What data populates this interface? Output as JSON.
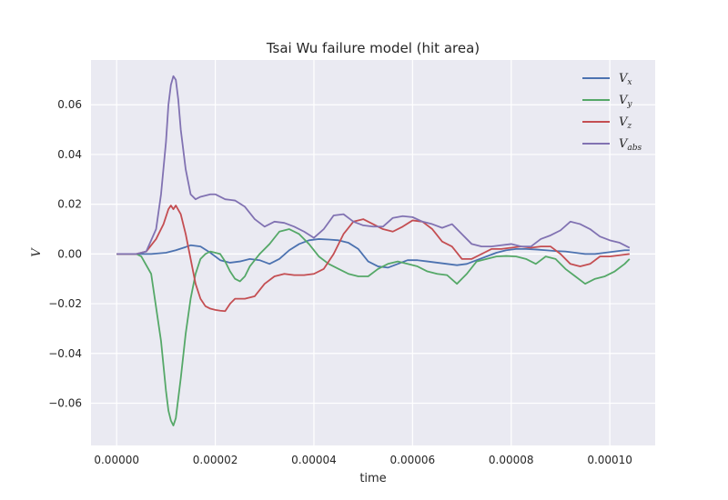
{
  "chart_data": {
    "type": "line",
    "title": "Tsai Wu failure model (hit area)",
    "xlabel": "time",
    "ylabel": "V",
    "xlim": [
      -5.2e-06,
      0.0001092
    ],
    "ylim": [
      -0.077,
      0.078
    ],
    "xticks": [
      0,
      2e-05,
      4e-05,
      6e-05,
      8e-05,
      0.0001
    ],
    "xtick_labels": [
      "0.00000",
      "0.00002",
      "0.00004",
      "0.00006",
      "0.00008",
      "0.00010"
    ],
    "yticks": [
      -0.06,
      -0.04,
      -0.02,
      0.0,
      0.02,
      0.04,
      0.06
    ],
    "ytick_labels": [
      "−0.06",
      "−0.04",
      "−0.02",
      "0.00",
      "0.02",
      "0.04",
      "0.06"
    ],
    "grid": true,
    "legend_position": "top-right",
    "background": "#eaeaf2",
    "series": [
      {
        "name": "V_x",
        "label_main": "V",
        "label_sub": "x",
        "color": "#4c72b0",
        "x": [
          0,
          4e-06,
          7e-06,
          1e-05,
          1.2e-05,
          1.4e-05,
          1.5e-05,
          1.7e-05,
          1.9e-05,
          2.1e-05,
          2.3e-05,
          2.5e-05,
          2.7e-05,
          2.9e-05,
          3.1e-05,
          3.3e-05,
          3.5e-05,
          3.7e-05,
          3.9e-05,
          4.1e-05,
          4.3e-05,
          4.5e-05,
          4.7e-05,
          4.9e-05,
          5.1e-05,
          5.3e-05,
          5.5e-05,
          5.7e-05,
          5.9e-05,
          6.1e-05,
          6.3e-05,
          6.5e-05,
          6.7e-05,
          6.9e-05,
          7.1e-05,
          7.3e-05,
          7.5e-05,
          7.7e-05,
          7.9e-05,
          8.1e-05,
          8.3e-05,
          8.5e-05,
          8.7e-05,
          8.9e-05,
          9.1e-05,
          9.3e-05,
          9.5e-05,
          9.7e-05,
          9.9e-05,
          0.000101,
          0.000103,
          0.000104
        ],
        "y": [
          0,
          0,
          0,
          0.0005,
          0.0015,
          0.0028,
          0.0035,
          0.003,
          0.0005,
          -0.0025,
          -0.0035,
          -0.003,
          -0.002,
          -0.0025,
          -0.004,
          -0.002,
          0.0015,
          0.004,
          0.0055,
          0.006,
          0.0058,
          0.0055,
          0.0045,
          0.002,
          -0.003,
          -0.005,
          -0.0055,
          -0.004,
          -0.0025,
          -0.0025,
          -0.003,
          -0.0035,
          -0.004,
          -0.0045,
          -0.004,
          -0.0025,
          -0.001,
          0.0005,
          0.0015,
          0.002,
          0.002,
          0.0018,
          0.0015,
          0.0012,
          0.001,
          0.0005,
          0,
          0,
          0.0005,
          0.001,
          0.0015,
          0.0015
        ]
      },
      {
        "name": "V_y",
        "label_main": "V",
        "label_sub": "y",
        "color": "#55a868",
        "x": [
          0,
          4e-06,
          5e-06,
          7e-06,
          9e-06,
          1e-05,
          1.05e-05,
          1.1e-05,
          1.15e-05,
          1.2e-05,
          1.3e-05,
          1.4e-05,
          1.5e-05,
          1.6e-05,
          1.7e-05,
          1.8e-05,
          1.9e-05,
          2.1e-05,
          2.2e-05,
          2.3e-05,
          2.4e-05,
          2.5e-05,
          2.6e-05,
          2.7e-05,
          2.9e-05,
          3.1e-05,
          3.3e-05,
          3.5e-05,
          3.7e-05,
          3.9e-05,
          4.1e-05,
          4.3e-05,
          4.5e-05,
          4.7e-05,
          4.9e-05,
          5.1e-05,
          5.3e-05,
          5.5e-05,
          5.7e-05,
          5.9e-05,
          6.1e-05,
          6.3e-05,
          6.5e-05,
          6.7e-05,
          6.9e-05,
          7.1e-05,
          7.3e-05,
          7.5e-05,
          7.7e-05,
          7.9e-05,
          8.1e-05,
          8.3e-05,
          8.5e-05,
          8.7e-05,
          8.9e-05,
          9.1e-05,
          9.3e-05,
          9.5e-05,
          9.7e-05,
          9.9e-05,
          0.000101,
          0.000103,
          0.000104
        ],
        "y": [
          0,
          0,
          -0.001,
          -0.008,
          -0.035,
          -0.055,
          -0.063,
          -0.067,
          -0.069,
          -0.066,
          -0.05,
          -0.032,
          -0.018,
          -0.008,
          -0.002,
          0,
          0.001,
          0,
          -0.003,
          -0.007,
          -0.01,
          -0.011,
          -0.009,
          -0.005,
          0,
          0.004,
          0.009,
          0.01,
          0.008,
          0.004,
          -0.001,
          -0.004,
          -0.006,
          -0.008,
          -0.009,
          -0.009,
          -0.006,
          -0.004,
          -0.003,
          -0.004,
          -0.005,
          -0.007,
          -0.008,
          -0.0085,
          -0.012,
          -0.008,
          -0.003,
          -0.002,
          -0.001,
          -0.0008,
          -0.001,
          -0.002,
          -0.004,
          -0.001,
          -0.002,
          -0.006,
          -0.009,
          -0.012,
          -0.01,
          -0.009,
          -0.007,
          -0.004,
          -0.002
        ]
      },
      {
        "name": "V_z",
        "label_main": "V",
        "label_sub": "z",
        "color": "#c44e52",
        "x": [
          0,
          4e-06,
          6e-06,
          8e-06,
          9.5e-06,
          1.05e-05,
          1.1e-05,
          1.15e-05,
          1.2e-05,
          1.3e-05,
          1.4e-05,
          1.5e-05,
          1.6e-05,
          1.7e-05,
          1.8e-05,
          1.9e-05,
          2e-05,
          2.1e-05,
          2.2e-05,
          2.3e-05,
          2.4e-05,
          2.6e-05,
          2.8e-05,
          3e-05,
          3.2e-05,
          3.4e-05,
          3.6e-05,
          3.8e-05,
          4e-05,
          4.2e-05,
          4.4e-05,
          4.6e-05,
          4.8e-05,
          5e-05,
          5.2e-05,
          5.4e-05,
          5.6e-05,
          5.8e-05,
          6e-05,
          6.2e-05,
          6.4e-05,
          6.6e-05,
          6.8e-05,
          7e-05,
          7.2e-05,
          7.4e-05,
          7.6e-05,
          7.8e-05,
          8e-05,
          8.2e-05,
          8.4e-05,
          8.6e-05,
          8.8e-05,
          9e-05,
          9.2e-05,
          9.4e-05,
          9.6e-05,
          9.8e-05,
          0.0001,
          0.000102,
          0.000104
        ],
        "y": [
          0,
          0,
          0.001,
          0.006,
          0.012,
          0.018,
          0.0195,
          0.018,
          0.0195,
          0.016,
          0.008,
          -0.002,
          -0.012,
          -0.018,
          -0.021,
          -0.022,
          -0.0225,
          -0.0228,
          -0.023,
          -0.02,
          -0.018,
          -0.018,
          -0.017,
          -0.012,
          -0.009,
          -0.008,
          -0.0085,
          -0.0085,
          -0.008,
          -0.006,
          0,
          0.008,
          0.013,
          0.014,
          0.012,
          0.01,
          0.009,
          0.011,
          0.0135,
          0.013,
          0.01,
          0.005,
          0.003,
          -0.002,
          -0.002,
          0,
          0.002,
          0.002,
          0.0025,
          0.003,
          0.0025,
          0.003,
          0.003,
          0,
          -0.004,
          -0.005,
          -0.004,
          -0.001,
          -0.001,
          -0.0005,
          0
        ]
      },
      {
        "name": "V_abs",
        "label_main": "V",
        "label_sub": "abs",
        "color": "#8172b2",
        "x": [
          0,
          4e-06,
          6e-06,
          8e-06,
          9e-06,
          1e-05,
          1.05e-05,
          1.1e-05,
          1.15e-05,
          1.2e-05,
          1.25e-05,
          1.3e-05,
          1.4e-05,
          1.5e-05,
          1.6e-05,
          1.7e-05,
          1.8e-05,
          1.9e-05,
          2e-05,
          2.1e-05,
          2.2e-05,
          2.4e-05,
          2.6e-05,
          2.8e-05,
          3e-05,
          3.2e-05,
          3.4e-05,
          3.6e-05,
          3.8e-05,
          4e-05,
          4.2e-05,
          4.4e-05,
          4.6e-05,
          4.8e-05,
          5e-05,
          5.2e-05,
          5.4e-05,
          5.6e-05,
          5.8e-05,
          6e-05,
          6.2e-05,
          6.4e-05,
          6.6e-05,
          6.8e-05,
          7e-05,
          7.2e-05,
          7.4e-05,
          7.6e-05,
          7.8e-05,
          8e-05,
          8.2e-05,
          8.4e-05,
          8.6e-05,
          8.8e-05,
          9e-05,
          9.2e-05,
          9.4e-05,
          9.6e-05,
          9.8e-05,
          0.0001,
          0.000102,
          0.000104
        ],
        "y": [
          0,
          0,
          0.001,
          0.01,
          0.024,
          0.045,
          0.06,
          0.068,
          0.0715,
          0.07,
          0.062,
          0.05,
          0.034,
          0.024,
          0.022,
          0.023,
          0.0235,
          0.024,
          0.024,
          0.023,
          0.022,
          0.0215,
          0.019,
          0.014,
          0.011,
          0.013,
          0.0125,
          0.011,
          0.009,
          0.0065,
          0.01,
          0.0155,
          0.016,
          0.013,
          0.0115,
          0.011,
          0.011,
          0.0145,
          0.0152,
          0.0148,
          0.013,
          0.012,
          0.0105,
          0.012,
          0.008,
          0.004,
          0.003,
          0.003,
          0.0035,
          0.004,
          0.003,
          0.003,
          0.006,
          0.0075,
          0.0095,
          0.013,
          0.012,
          0.01,
          0.007,
          0.0055,
          0.0045,
          0.0025
        ]
      }
    ]
  }
}
